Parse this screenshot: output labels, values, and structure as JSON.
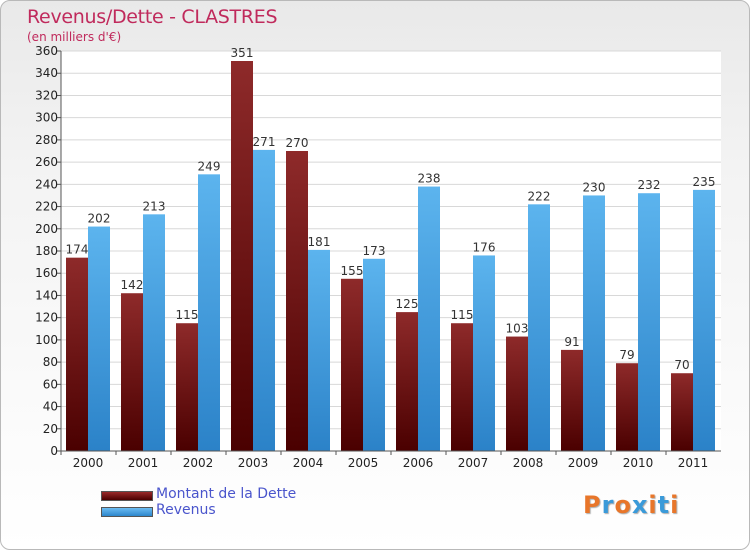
{
  "chart_data": {
    "type": "bar",
    "title": "Revenus/Dette - CLASTRES",
    "subtitle": "(en milliers d'€)",
    "categories": [
      "2000",
      "2001",
      "2002",
      "2003",
      "2004",
      "2005",
      "2006",
      "2007",
      "2008",
      "2009",
      "2010",
      "2011"
    ],
    "series": [
      {
        "name": "Montant de la Dette",
        "color": "#7a1212",
        "values": [
          174,
          142,
          115,
          351,
          270,
          155,
          125,
          115,
          103,
          91,
          79,
          70
        ]
      },
      {
        "name": "Revenus",
        "color": "#4da8e8",
        "values": [
          202,
          213,
          249,
          271,
          181,
          173,
          238,
          176,
          222,
          230,
          232,
          235
        ]
      }
    ],
    "ylim": [
      0,
      360
    ],
    "yticks": [
      0,
      20,
      40,
      60,
      80,
      100,
      120,
      140,
      160,
      180,
      200,
      220,
      240,
      260,
      280,
      300,
      320,
      340,
      360
    ],
    "grid": true,
    "legend_position": "bottom-left"
  },
  "logo": {
    "text": "Proxiti",
    "colors": [
      "#e8762a",
      "#3a9ad9",
      "#e8762a",
      "#3a9ad9",
      "#e8762a",
      "#3a9ad9",
      "#e8762a"
    ]
  }
}
